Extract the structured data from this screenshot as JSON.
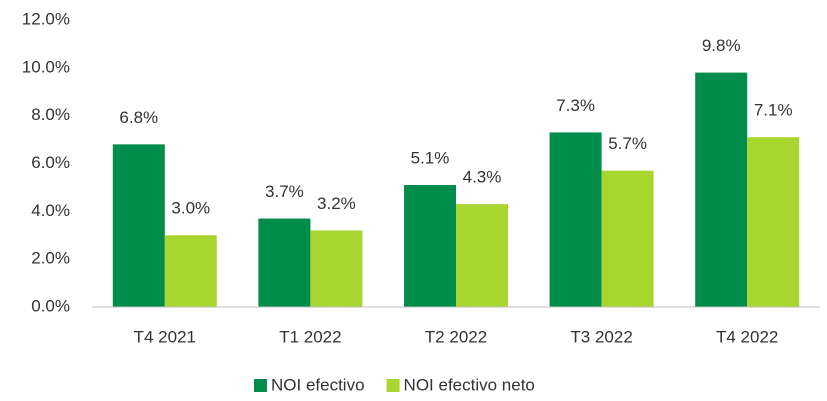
{
  "chart_data": {
    "type": "bar",
    "categories": [
      "T4 2021",
      "T1 2022",
      "T2 2022",
      "T3 2022",
      "T4 2022"
    ],
    "series": [
      {
        "name": "NOI efectivo",
        "color": "#008c4a",
        "values": [
          6.8,
          3.7,
          5.1,
          7.3,
          9.8
        ],
        "value_labels": [
          "6.8%",
          "3.7%",
          "5.1%",
          "7.3%",
          "9.8%"
        ]
      },
      {
        "name": "NOI efectivo neto",
        "color": "#a9d52f",
        "values": [
          3.0,
          3.2,
          4.3,
          5.7,
          7.1
        ],
        "value_labels": [
          "3.0%",
          "3.2%",
          "4.3%",
          "5.7%",
          "7.1%"
        ]
      }
    ],
    "ylim": [
      0,
      12
    ],
    "yticks": [
      {
        "value": 0,
        "label": "0.0%"
      },
      {
        "value": 2,
        "label": "2.0%"
      },
      {
        "value": 4,
        "label": "4.0%"
      },
      {
        "value": 6,
        "label": "6.0%"
      },
      {
        "value": 8,
        "label": "8.0%"
      },
      {
        "value": 10,
        "label": "10.0%"
      },
      {
        "value": 12,
        "label": "12.0%"
      }
    ],
    "grid": false,
    "legend": "bottom"
  }
}
